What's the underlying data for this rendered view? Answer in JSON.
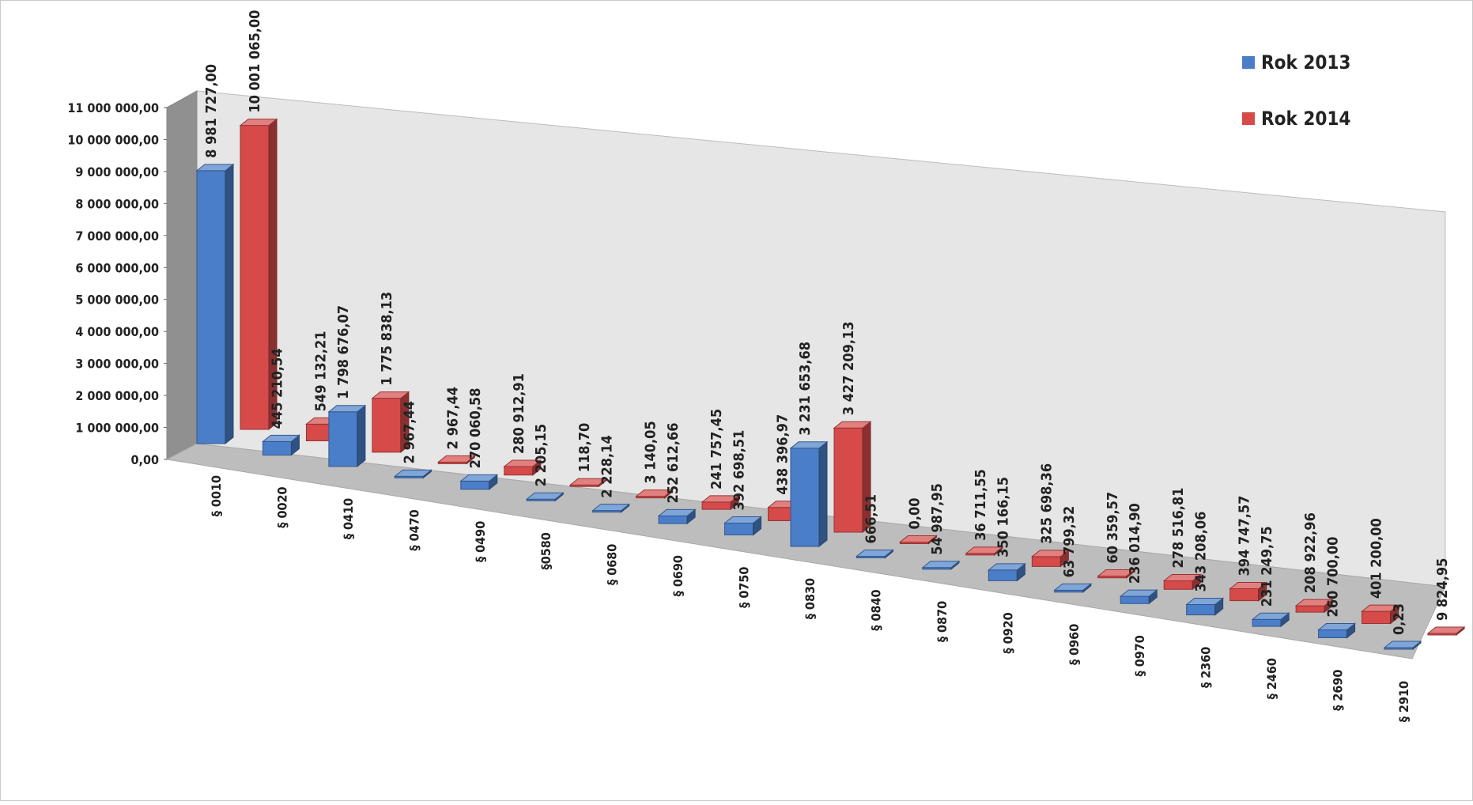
{
  "chart_data": {
    "type": "bar",
    "title": "",
    "xlabel": "",
    "ylabel": "",
    "ylim": [
      0,
      11000000
    ],
    "y_ticks": [
      {
        "value": 0,
        "label": "0,00"
      },
      {
        "value": 1000000,
        "label": "1 000 000,00"
      },
      {
        "value": 2000000,
        "label": "2 000 000,00"
      },
      {
        "value": 3000000,
        "label": "3 000 000,00"
      },
      {
        "value": 4000000,
        "label": "4 000 000,00"
      },
      {
        "value": 5000000,
        "label": "5 000 000,00"
      },
      {
        "value": 6000000,
        "label": "6 000 000,00"
      },
      {
        "value": 7000000,
        "label": "7 000 000,00"
      },
      {
        "value": 8000000,
        "label": "8 000 000,00"
      },
      {
        "value": 9000000,
        "label": "9 000 000,00"
      },
      {
        "value": 10000000,
        "label": "10 000 000,00"
      },
      {
        "value": 11000000,
        "label": "11 000 000,00"
      }
    ],
    "categories": [
      "§ 0010",
      "§ 0020",
      "§ 0410",
      "§ 0470",
      "§ 0490",
      "§0580",
      "§ 0680",
      "§ 0690",
      "§ 0750",
      "§ 0830",
      "§ 0840",
      "§ 0870",
      "§ 0920",
      "§ 0960",
      "§ 0970",
      "§ 2360",
      "§ 2460",
      "§ 2690",
      "§ 2910"
    ],
    "series": [
      {
        "name": "Rok 2013",
        "color": "#4a7ec8",
        "values": [
          8981727.0,
          445210.54,
          1798676.07,
          2967.44,
          270060.58,
          2205.15,
          2228.14,
          252612.66,
          392698.51,
          3231653.68,
          666.51,
          54987.95,
          350166.15,
          63799.32,
          236014.9,
          343208.06,
          231249.75,
          260700.0,
          0.23
        ],
        "labels": [
          "8 981 727,00",
          "445 210,54",
          "1 798 676,07",
          "2 967,44",
          "270 060,58",
          "2 205,15",
          "2 228,14",
          "252 612,66",
          "392 698,51",
          "3 231 653,68",
          "666,51",
          "54 987,95",
          "350 166,15",
          "63 799,32",
          "236 014,90",
          "343 208,06",
          "231 249,75",
          "260 700,00",
          "0,23"
        ]
      },
      {
        "name": "Rok 2014",
        "color": "#d64a4a",
        "values": [
          10001065.0,
          549132.21,
          1775838.13,
          2967.44,
          280912.91,
          118.7,
          3140.05,
          241757.45,
          438396.97,
          3427209.13,
          0.0,
          36711.55,
          325698.36,
          60359.57,
          278516.81,
          394747.57,
          208922.96,
          401200.0,
          9824.95
        ],
        "labels": [
          "10 001 065,00",
          "549 132,21",
          "1 775 838,13",
          "2 967,44",
          "280 912,91",
          "118,70",
          "3 140,05",
          "241 757,45",
          "438 396,97",
          "3 427 209,13",
          "0,00",
          "36 711,55",
          "325 698,36",
          "60 359,57",
          "278 516,81",
          "394 747,57",
          "208 922,96",
          "401 200,00",
          "9 824,95"
        ]
      }
    ],
    "legend": {
      "position": "top-right",
      "entries": [
        "Rok 2013",
        "Rok 2014"
      ]
    },
    "grid": false,
    "style": "3d-clustered-column"
  }
}
